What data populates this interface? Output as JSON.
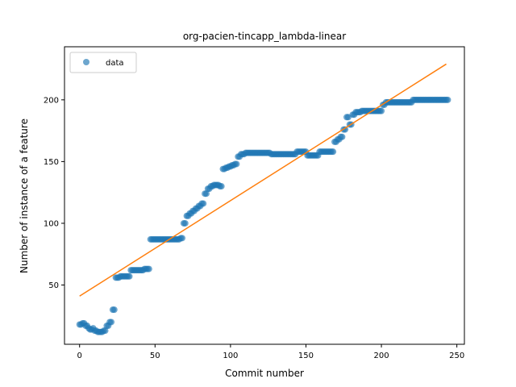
{
  "chart_data": {
    "type": "scatter",
    "title": "org-pacien-tincapp_lambda-linear",
    "xlabel": "Commit number",
    "ylabel": "Number of instance of a feature",
    "xlim": [
      -10,
      255
    ],
    "ylim": [
      2,
      243
    ],
    "xticks": [
      0,
      50,
      100,
      150,
      200,
      250
    ],
    "yticks": [
      50,
      100,
      150,
      200
    ],
    "legend": {
      "position": "top-left",
      "entries": [
        "data"
      ]
    },
    "colors": {
      "data": "#1f77b4",
      "fit": "#ff7f0e"
    },
    "series": [
      {
        "name": "data",
        "kind": "points",
        "segments": [
          [
            0,
            1,
            18
          ],
          [
            2,
            3,
            19
          ],
          [
            4,
            5,
            17
          ],
          [
            6,
            6,
            15
          ],
          [
            7,
            8,
            14
          ],
          [
            9,
            9,
            15
          ],
          [
            10,
            11,
            13
          ],
          [
            12,
            15,
            12
          ],
          [
            16,
            17,
            13
          ],
          [
            18,
            19,
            17
          ],
          [
            20,
            21,
            20
          ],
          [
            22,
            23,
            30
          ],
          [
            24,
            26,
            56
          ],
          [
            27,
            33,
            57
          ],
          [
            34,
            35,
            62
          ],
          [
            36,
            42,
            62
          ],
          [
            43,
            46,
            63
          ],
          [
            47,
            66,
            87
          ],
          [
            67,
            68,
            88
          ],
          [
            69,
            70,
            100
          ],
          [
            71,
            72,
            106
          ],
          [
            73,
            74,
            108
          ],
          [
            75,
            76,
            110
          ],
          [
            77,
            78,
            112
          ],
          [
            79,
            80,
            114
          ],
          [
            81,
            82,
            116
          ],
          [
            83,
            84,
            124
          ],
          [
            85,
            86,
            128
          ],
          [
            87,
            88,
            130
          ],
          [
            89,
            92,
            131
          ],
          [
            93,
            94,
            130
          ],
          [
            95,
            96,
            144
          ],
          [
            97,
            98,
            145
          ],
          [
            99,
            100,
            146
          ],
          [
            101,
            102,
            147
          ],
          [
            103,
            104,
            148
          ],
          [
            105,
            106,
            154
          ],
          [
            107,
            109,
            156
          ],
          [
            110,
            126,
            157
          ],
          [
            127,
            143,
            156
          ],
          [
            144,
            150,
            158
          ],
          [
            151,
            158,
            155
          ],
          [
            159,
            168,
            158
          ],
          [
            169,
            170,
            166
          ],
          [
            171,
            172,
            168
          ],
          [
            173,
            174,
            170
          ],
          [
            175,
            176,
            176
          ],
          [
            177,
            178,
            186
          ],
          [
            179,
            180,
            180
          ],
          [
            181,
            182,
            188
          ],
          [
            183,
            186,
            190
          ],
          [
            187,
            200,
            191
          ],
          [
            201,
            202,
            196
          ],
          [
            203,
            220,
            198
          ],
          [
            221,
            244,
            200
          ]
        ]
      },
      {
        "name": "",
        "kind": "line",
        "x": [
          0,
          243
        ],
        "y": [
          41,
          229
        ]
      }
    ]
  }
}
